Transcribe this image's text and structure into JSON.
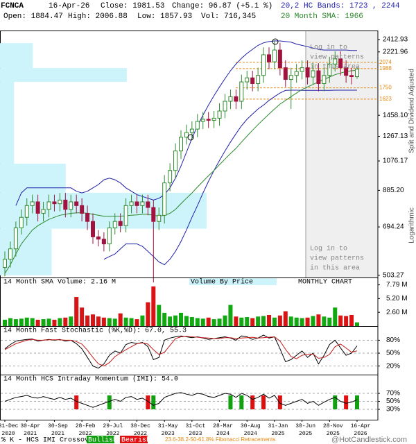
{
  "header": {
    "symbol": "FCNCA",
    "date": "16-Apr-26",
    "close": "Close: 1981.53",
    "change": "Change: 96.87 (+5.1 %)",
    "bands": "20,2 HC Bands: 1723 , 2244",
    "open": "Open: 1884.47",
    "high": "High: 2006.88",
    "low": "Low: 1857.93",
    "volume": "Vol: 716,345",
    "sma": "20 Month SMA: 1966"
  },
  "footer": {
    "crossover_label": "% K - HCS IMI Crossover:",
    "bullish": "Bullish",
    "bearish": "Bearish",
    "fib_note": "23.6-38.2-50-61.8% Fibonacci Retracements",
    "site": "@HotCandlestick.com"
  },
  "chart_data": [
    {
      "type": "candlestick",
      "log_scale": true,
      "grid": false,
      "categories": [
        [
          "31-Dec",
          "2020"
        ],
        null,
        null,
        null,
        [
          "30-Apr",
          "2021"
        ],
        null,
        null,
        null,
        null,
        [
          "30-Sep",
          "2021"
        ],
        null,
        null,
        null,
        null,
        [
          "28-Feb",
          "2022"
        ],
        null,
        null,
        null,
        null,
        [
          "29-Jul",
          "2022"
        ],
        null,
        null,
        null,
        null,
        [
          "30-Dec",
          "2022"
        ],
        null,
        null,
        null,
        null,
        [
          "31-May",
          "2023"
        ],
        null,
        null,
        null,
        null,
        [
          "31-Oct",
          "2023"
        ],
        null,
        null,
        null,
        null,
        [
          "28-Mar",
          "2024"
        ],
        null,
        null,
        null,
        null,
        [
          "30-Aug",
          "2024"
        ],
        null,
        null,
        null,
        null,
        [
          "31-Jan",
          "2025"
        ],
        null,
        null,
        null,
        null,
        [
          "30-Jun",
          "2025"
        ],
        null,
        null,
        null,
        null,
        [
          "28-Nov",
          "2025"
        ],
        null,
        null,
        null,
        null,
        [
          "16-Apr",
          "2026"
        ]
      ],
      "open": [
        530,
        560,
        600,
        690,
        740,
        800,
        820,
        760,
        780,
        820,
        810,
        830,
        780,
        820,
        800,
        760,
        720,
        650,
        640,
        620,
        690,
        720,
        700,
        800,
        820,
        800,
        820,
        790,
        720,
        750,
        930,
        1010,
        1150,
        1260,
        1300,
        1330,
        1400,
        1420,
        1410,
        1430,
        1500,
        1600,
        1650,
        1600,
        1820,
        1870,
        1800,
        1900,
        2180,
        2080,
        2250,
        2000,
        1850,
        1900,
        1950,
        2000,
        1880,
        1960,
        1800,
        1900,
        2050,
        2120,
        2000,
        1900,
        1884.47
      ],
      "high": [
        590,
        630,
        720,
        780,
        840,
        860,
        860,
        820,
        860,
        860,
        870,
        870,
        860,
        860,
        840,
        800,
        760,
        680,
        670,
        720,
        760,
        760,
        840,
        860,
        860,
        860,
        860,
        830,
        790,
        980,
        1060,
        1210,
        1320,
        1370,
        1400,
        1470,
        1490,
        1490,
        1500,
        1580,
        1680,
        1730,
        1730,
        1910,
        1960,
        1960,
        2000,
        2290,
        2290,
        2400,
        2360,
        2100,
        2000,
        2050,
        2100,
        2100,
        2060,
        2060,
        2000,
        2150,
        2230,
        2230,
        2100,
        2000,
        2006.88
      ],
      "low": [
        500,
        530,
        570,
        660,
        700,
        760,
        720,
        720,
        740,
        770,
        770,
        740,
        740,
        760,
        720,
        680,
        620,
        610,
        590,
        590,
        660,
        670,
        670,
        760,
        760,
        760,
        750,
        480,
        680,
        710,
        880,
        960,
        1090,
        1200,
        1240,
        1260,
        1330,
        1340,
        1340,
        1360,
        1430,
        1520,
        1520,
        1520,
        1730,
        1710,
        1710,
        1810,
        1980,
        1980,
        1900,
        1760,
        1520,
        1810,
        1850,
        1790,
        1790,
        1710,
        1710,
        1810,
        1950,
        1900,
        1810,
        1790,
        1857.93
      ],
      "close": [
        560,
        600,
        690,
        740,
        800,
        820,
        760,
        780,
        820,
        810,
        830,
        780,
        820,
        800,
        760,
        720,
        650,
        640,
        620,
        690,
        720,
        700,
        800,
        820,
        800,
        820,
        790,
        720,
        750,
        930,
        1010,
        1150,
        1260,
        1300,
        1330,
        1400,
        1420,
        1410,
        1430,
        1500,
        1600,
        1650,
        1600,
        1820,
        1870,
        1800,
        1900,
        2180,
        2080,
        2250,
        2000,
        1850,
        1900,
        1950,
        2000,
        1880,
        1960,
        1800,
        1900,
        2050,
        2120,
        2000,
        1900,
        1884.66,
        1981.53
      ],
      "up_color": "#2e8b2e",
      "down_color": "#a3123f",
      "series": [
        {
          "color": "#1f1fa8",
          "values": [
            null,
            null,
            800,
            870,
            900,
            900,
            900,
            900,
            900,
            900,
            900,
            900,
            900,
            880,
            870,
            880,
            900,
            920,
            950,
            960,
            950,
            930,
            900,
            880,
            860,
            850,
            840,
            830,
            840,
            860,
            900,
            960,
            1040,
            1140,
            1250,
            1360,
            1460,
            1560,
            1660,
            1760,
            1860,
            1960,
            2050,
            2130,
            2200,
            2260,
            2320,
            2360,
            2380,
            2390,
            2390,
            2380,
            2370,
            2340,
            2320,
            2300,
            2280,
            2260,
            2250,
            2250,
            2250,
            2250,
            2250,
            2244,
            2244
          ]
        },
        {
          "color": "#1f1fa8",
          "values": [
            null,
            null,
            null,
            null,
            null,
            null,
            null,
            null,
            null,
            null,
            null,
            null,
            null,
            null,
            null,
            null,
            null,
            null,
            560,
            570,
            580,
            600,
            620,
            620,
            620,
            610,
            590,
            570,
            550,
            540,
            560,
            590,
            630,
            680,
            740,
            800,
            870,
            940,
            1010,
            1080,
            1150,
            1220,
            1290,
            1360,
            1420,
            1470,
            1520,
            1560,
            1610,
            1650,
            1690,
            1720,
            1723,
            1723,
            1720,
            1720,
            1720,
            1720,
            1720,
            1720,
            1723,
            1723,
            1723,
            1723,
            1723
          ]
        },
        {
          "color": "#2a8a2a",
          "values": [
            510,
            540,
            580,
            620,
            650,
            680,
            700,
            715,
            730,
            740,
            750,
            755,
            760,
            762,
            763,
            760,
            755,
            750,
            745,
            745,
            745,
            745,
            748,
            750,
            752,
            755,
            755,
            750,
            745,
            750,
            760,
            780,
            810,
            840,
            870,
            905,
            940,
            975,
            1010,
            1050,
            1090,
            1130,
            1170,
            1220,
            1270,
            1320,
            1370,
            1420,
            1470,
            1520,
            1570,
            1610,
            1650,
            1690,
            1730,
            1760,
            1790,
            1820,
            1850,
            1880,
            1910,
            1930,
            1950,
            1960,
            1966
          ]
        }
      ],
      "ylim": [
        496,
        2561
      ],
      "yticks": [
        2412.93,
        2221.96,
        {
          "value": 1458.1,
          "label": "1458.10"
        },
        1267.13,
        1076.17,
        {
          "value": 885.2,
          "label": "885.20"
        },
        694.24,
        503.27
      ],
      "fib_levels": [
        2074,
        1988,
        1750,
        1623
      ],
      "fib_color": "#e8870e",
      "volume_by_price": {
        "bins": [
          503.27,
          686,
          871,
          1057,
          1820,
          1995,
          2355
        ],
        "values": [
          11,
          44,
          14,
          3,
          27,
          7
        ],
        "color": "#cdf3fb"
      },
      "login_note": [
        "Log in to",
        "view patterns",
        "in this area"
      ],
      "side_labels": [
        "Split and Dividend Adjusted",
        "Logarithmic"
      ]
    },
    {
      "type": "bar",
      "title": "14 Month SMA Volume: 2.16 M",
      "annotations": [
        "Volume By Price",
        "MONTHLY CHART"
      ],
      "values": [
        1.2,
        1.5,
        1.3,
        1.4,
        1.6,
        1.5,
        1.2,
        1.3,
        1.4,
        1.2,
        1.5,
        1.6,
        1.8,
        5.5,
        3.5,
        2.0,
        2.2,
        1.8,
        1.6,
        1.5,
        1.4,
        2.4,
        1.6,
        1.5,
        1.3,
        2.0,
        4.5,
        7.5,
        4.0,
        2.5,
        1.8,
        2.0,
        2.5,
        1.9,
        1.7,
        1.5,
        1.4,
        1.6,
        1.3,
        1.4,
        2.0,
        4.0,
        1.8,
        1.6,
        1.7,
        1.5,
        1.8,
        1.9,
        2.1,
        1.6,
        2.0,
        2.8,
        1.8,
        1.6,
        1.5,
        1.6,
        1.9,
        2.2,
        1.8,
        1.6,
        3.5,
        2.0,
        1.9,
        2.1,
        0.7
      ],
      "up_color": "#11a811",
      "down_color": "#d81414",
      "grid": false,
      "ylim": [
        0,
        9.18
      ],
      "yticks": [
        {
          "value": 7.79,
          "label": "7.79 M"
        },
        {
          "value": 5.2,
          "label": "5.20 M"
        },
        {
          "value": 2.6,
          "label": "2.60 M"
        }
      ]
    },
    {
      "type": "line",
      "title": "14 Month Fast Stochastic (%K,%D): 67.0, 55.3",
      "grid": true,
      "series": [
        {
          "color": "#000000",
          "values": [
            60,
            70,
            78,
            80,
            82,
            83,
            78,
            80,
            82,
            80,
            82,
            78,
            80,
            72,
            60,
            40,
            20,
            15,
            25,
            45,
            55,
            50,
            70,
            75,
            72,
            75,
            65,
            35,
            40,
            80,
            85,
            88,
            90,
            88,
            86,
            88,
            85,
            82,
            84,
            86,
            88,
            85,
            80,
            90,
            88,
            82,
            85,
            92,
            85,
            88,
            60,
            30,
            35,
            45,
            55,
            40,
            50,
            25,
            45,
            70,
            80,
            62,
            45,
            50,
            67
          ]
        },
        {
          "color": "#c41a1a",
          "values": [
            58,
            65,
            72,
            76,
            80,
            82,
            80,
            80,
            81,
            81,
            81,
            80,
            80,
            77,
            71,
            57,
            40,
            25,
            20,
            28,
            42,
            50,
            58,
            65,
            72,
            74,
            71,
            58,
            47,
            52,
            68,
            84,
            88,
            89,
            88,
            87,
            86,
            85,
            84,
            84,
            86,
            86,
            84,
            85,
            86,
            87,
            85,
            86,
            87,
            88,
            78,
            59,
            42,
            37,
            45,
            47,
            48,
            38,
            40,
            47,
            65,
            71,
            62,
            52,
            55.3
          ]
        }
      ],
      "ylim": [
        0,
        113
      ],
      "yticks": [
        {
          "value": 80,
          "label": "80%"
        },
        {
          "value": 50,
          "label": "50%"
        },
        {
          "value": 20,
          "label": "20%"
        }
      ]
    },
    {
      "type": "line",
      "title": "14 Month HCS Intraday Momentum (IMI): 54.0",
      "grid": true,
      "series": [
        {
          "color": "#000000",
          "values": [
            50,
            55,
            60,
            62,
            65,
            60,
            58,
            62,
            58,
            55,
            60,
            55,
            58,
            50,
            45,
            40,
            35,
            40,
            45,
            50,
            55,
            50,
            60,
            62,
            55,
            58,
            50,
            40,
            45,
            60,
            65,
            70,
            72,
            68,
            65,
            70,
            68,
            62,
            60,
            65,
            70,
            68,
            60,
            70,
            65,
            55,
            60,
            68,
            58,
            65,
            45,
            40,
            45,
            50,
            55,
            45,
            50,
            40,
            48,
            55,
            60,
            50,
            45,
            48,
            54
          ]
        }
      ],
      "signals": [
        0,
        0,
        0,
        0,
        0,
        0,
        0,
        0,
        0,
        0,
        0,
        0,
        0,
        -1,
        0,
        0,
        0,
        0,
        0,
        1,
        0,
        0,
        0,
        0,
        0,
        0,
        -1,
        1,
        0,
        0,
        0,
        0,
        0,
        0,
        0,
        0,
        0,
        0,
        0,
        0,
        0,
        1,
        0,
        1,
        0,
        -1,
        0,
        -1,
        0,
        0,
        -1,
        0,
        0,
        0,
        0,
        0,
        0,
        0,
        0,
        0,
        1,
        0,
        -1,
        0,
        1
      ],
      "signal_colors": {
        "bullish": "#10a010",
        "bearish": "#e01010"
      },
      "ylim": [
        4,
        117
      ],
      "yticks": [
        {
          "value": 70,
          "label": "70%"
        },
        {
          "value": 50,
          "label": "50%"
        },
        {
          "value": 30,
          "label": "30%"
        }
      ]
    }
  ]
}
